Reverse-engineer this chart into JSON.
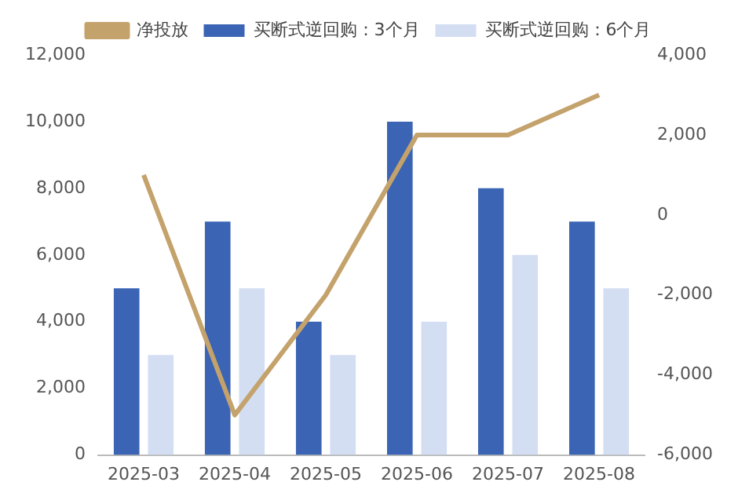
{
  "chart_data": {
    "type": "bar",
    "categories": [
      "2025-03",
      "2025-04",
      "2025-05",
      "2025-06",
      "2025-07",
      "2025-08"
    ],
    "series": [
      {
        "name": "买断式逆回购：3个月",
        "color": "#3b64b4",
        "values": [
          5000,
          7000,
          4000,
          10000,
          8000,
          7000
        ]
      },
      {
        "name": "买断式逆回购：6个月",
        "color": "#d3def3",
        "values": [
          3000,
          5000,
          3000,
          4000,
          6000,
          5000
        ]
      },
      {
        "name": "净投放",
        "type": "line",
        "axis": "y2",
        "color": "#c4a26c",
        "values": [
          1000,
          -5000,
          -2000,
          2000,
          2000,
          3000
        ]
      }
    ],
    "ylim": [
      0,
      12000
    ],
    "yticks": [
      {
        "value": 0,
        "label": "0"
      },
      {
        "value": 2000,
        "label": "2,000"
      },
      {
        "value": 4000,
        "label": "4,000"
      },
      {
        "value": 6000,
        "label": "6,000"
      },
      {
        "value": 8000,
        "label": "8,000"
      },
      {
        "value": 10000,
        "label": "10,000"
      },
      {
        "value": 12000,
        "label": "12,000"
      }
    ],
    "y2lim": [
      -6000,
      4000
    ],
    "y2ticks": [
      {
        "value": -6000,
        "label": "-6,000"
      },
      {
        "value": -4000,
        "label": "-4,000"
      },
      {
        "value": -2000,
        "label": "-2,000"
      },
      {
        "value": 0,
        "label": "0"
      },
      {
        "value": 2000,
        "label": "2,000"
      },
      {
        "value": 4000,
        "label": "4,000"
      }
    ],
    "grid": false,
    "legend": "top",
    "marker": "none",
    "line_style": "solid"
  }
}
